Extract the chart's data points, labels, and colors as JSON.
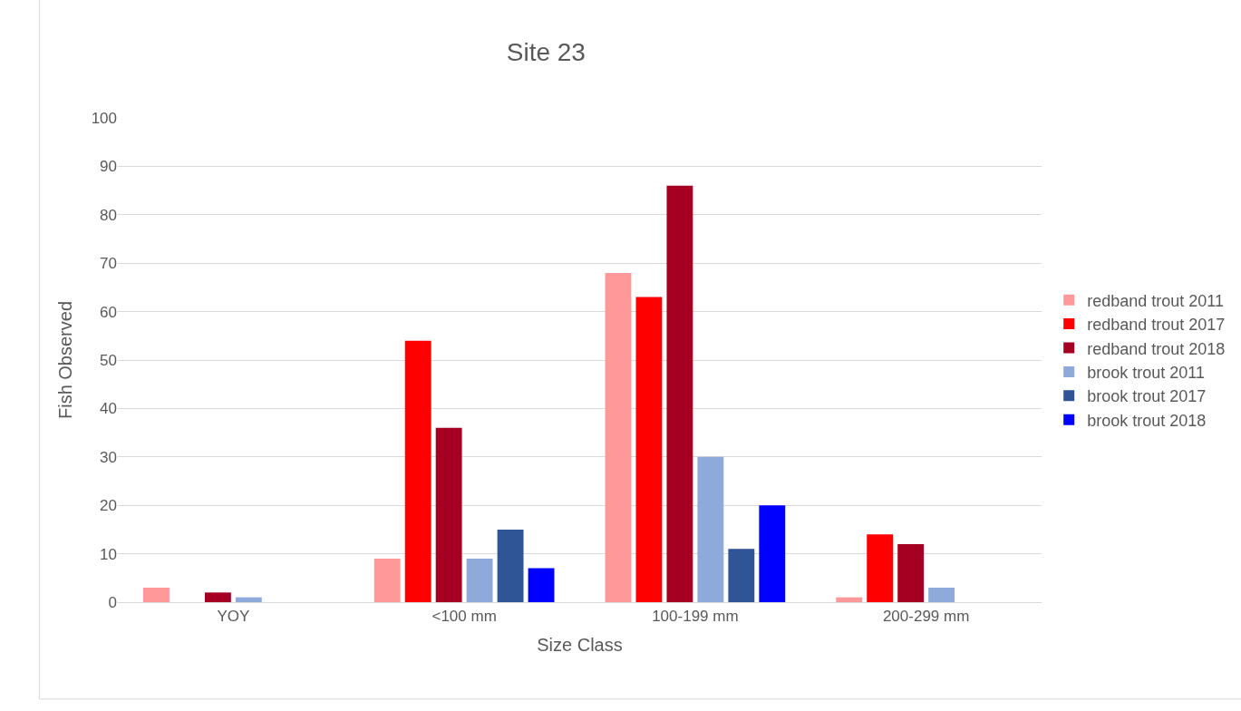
{
  "chart_data": {
    "type": "bar",
    "title": "Site 23",
    "xlabel": "Size Class",
    "ylabel": "Fish Observed",
    "categories": [
      "YOY",
      "<100 mm",
      "100-199 mm",
      "200-299 mm"
    ],
    "series": [
      {
        "name": "redband trout 2011",
        "color": "#ff9999",
        "values": [
          3,
          9,
          68,
          1
        ]
      },
      {
        "name": "redband trout 2017",
        "color": "#ff0000",
        "values": [
          0,
          54,
          63,
          14
        ]
      },
      {
        "name": "redband trout 2018",
        "color": "#a50021",
        "values": [
          2,
          36,
          86,
          12
        ]
      },
      {
        "name": "brook trout 2011",
        "color": "#8eaadb",
        "values": [
          1,
          9,
          30,
          3
        ]
      },
      {
        "name": "brook trout 2017",
        "color": "#2f5597",
        "values": [
          0,
          15,
          11,
          0
        ]
      },
      {
        "name": "brook trout 2018",
        "color": "#0000ff",
        "values": [
          0,
          7,
          20,
          0
        ]
      }
    ],
    "ylim": [
      0,
      100
    ],
    "yticks": [
      0,
      10,
      20,
      30,
      40,
      50,
      60,
      70,
      80,
      90,
      100
    ],
    "grid": "y",
    "legend": "right"
  }
}
